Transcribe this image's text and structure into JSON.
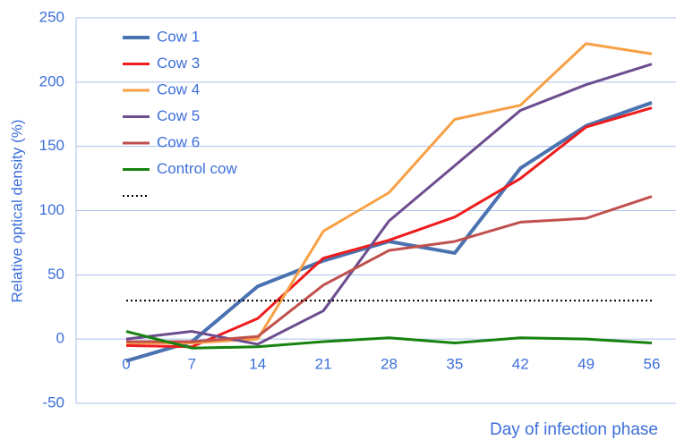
{
  "chart_data": {
    "type": "line",
    "x": [
      0,
      7,
      14,
      21,
      28,
      35,
      42,
      49,
      56
    ],
    "xlim": [
      0,
      56
    ],
    "ylim": [
      -50,
      250
    ],
    "yticks": [
      -50,
      0,
      50,
      100,
      150,
      200,
      250
    ],
    "grid": true,
    "y_label": "Relative optical density (%)",
    "x_label": "Day of infection phase",
    "series": [
      {
        "name": "Cow 1",
        "color": "#4a72b0",
        "width": 4,
        "values": [
          -17,
          -2,
          41,
          61,
          76,
          67,
          133,
          166,
          184
        ]
      },
      {
        "name": "Cow 3",
        "color": "#ee1c1c",
        "width": 3,
        "values": [
          -5,
          -6,
          16,
          63,
          77,
          95,
          125,
          165,
          180
        ]
      },
      {
        "name": "Cow 4",
        "color": "#f7a045",
        "width": 3,
        "values": [
          -3,
          -3,
          0,
          84,
          114,
          171,
          182,
          230,
          222
        ]
      },
      {
        "name": "Cow 5",
        "color": "#6c4d8e",
        "width": 3,
        "values": [
          0,
          6,
          -4,
          22,
          92,
          135,
          178,
          198,
          214
        ]
      },
      {
        "name": "Cow 6",
        "color": "#c0504d",
        "width": 3,
        "values": [
          -2,
          -2,
          2,
          42,
          69,
          76,
          91,
          94,
          111
        ]
      },
      {
        "name": "Control cow",
        "color": "#17820f",
        "width": 3,
        "values": [
          6,
          -7,
          -6,
          -2,
          1,
          -3,
          1,
          0,
          -3
        ]
      },
      {
        "color": "#000000",
        "width": 2,
        "dash": true,
        "values": [
          30,
          30,
          30,
          30,
          30,
          30,
          30,
          30,
          30
        ]
      }
    ]
  }
}
